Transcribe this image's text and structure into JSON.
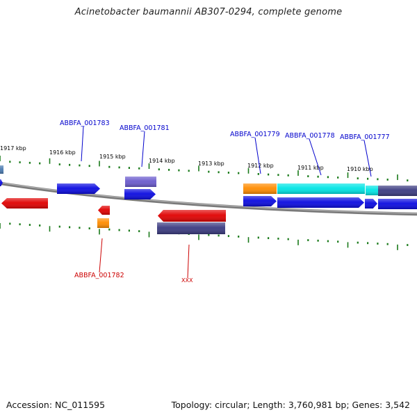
{
  "title": "Acinetobacter baumannii AB307-0294, complete genome",
  "accession": "Accession: NC_011595",
  "topology": "Topology: circular; Length: 3,760,981 bp; Genes: 3,542",
  "kbp_labels": [
    "1917 kbp",
    "1916 kbp",
    "1915 kbp",
    "1914 kbp",
    "1913 kbp",
    "1912 kbp",
    "1911 kbp",
    "1910 kbp"
  ],
  "gene_labels": [
    {
      "text": "ABBFA_001783",
      "color": "#0000cc"
    },
    {
      "text": "ABBFA_001781",
      "color": "#0000cc"
    },
    {
      "text": "ABBFA_001779",
      "color": "#0000cc"
    },
    {
      "text": "ABBFA_001778",
      "color": "#0000cc"
    },
    {
      "text": "ABBFA_001777",
      "color": "#0000cc"
    },
    {
      "text": "ABBFA_001782",
      "color": "#cc0000"
    },
    {
      "text": "XXX",
      "color": "#cc0000"
    }
  ],
  "colors": {
    "tick": "#1a7a1a",
    "backbone": "#7a7a7a",
    "cds_blue": "#0a0ae0",
    "cds_red": "#e00000",
    "trna_orange": "#ff8c00",
    "rrna_cyan": "#00e5e5",
    "misc_slate": "#3a3a80",
    "misc_lavender": "#6a5acd",
    "steel": "#4a7ab0"
  },
  "features": [
    {
      "name": "feature-steel-left",
      "color": "steel"
    },
    {
      "name": "feature-blue-edge-arrow",
      "color": "cds_blue"
    },
    {
      "name": "feature-red-left",
      "color": "cds_red"
    },
    {
      "name": "feature-blue-1783",
      "color": "cds_blue"
    },
    {
      "name": "feature-red-small",
      "color": "cds_red"
    },
    {
      "name": "feature-orange-1782",
      "color": "trna_orange"
    },
    {
      "name": "feature-lavender-1781",
      "color": "misc_lavender"
    },
    {
      "name": "feature-blue-1781",
      "color": "cds_blue"
    },
    {
      "name": "feature-red-xxx",
      "color": "cds_red"
    },
    {
      "name": "feature-slate-xxx",
      "color": "misc_slate"
    },
    {
      "name": "feature-orange-1779",
      "color": "trna_orange"
    },
    {
      "name": "feature-cyan-1778",
      "color": "rrna_cyan"
    },
    {
      "name": "feature-cyan-1777",
      "color": "rrna_cyan"
    },
    {
      "name": "feature-slate-right",
      "color": "misc_slate"
    },
    {
      "name": "feature-blue-1779",
      "color": "cds_blue"
    },
    {
      "name": "feature-blue-1778",
      "color": "cds_blue"
    },
    {
      "name": "feature-blue-1777",
      "color": "cds_blue"
    },
    {
      "name": "feature-blue-right",
      "color": "cds_blue"
    }
  ]
}
